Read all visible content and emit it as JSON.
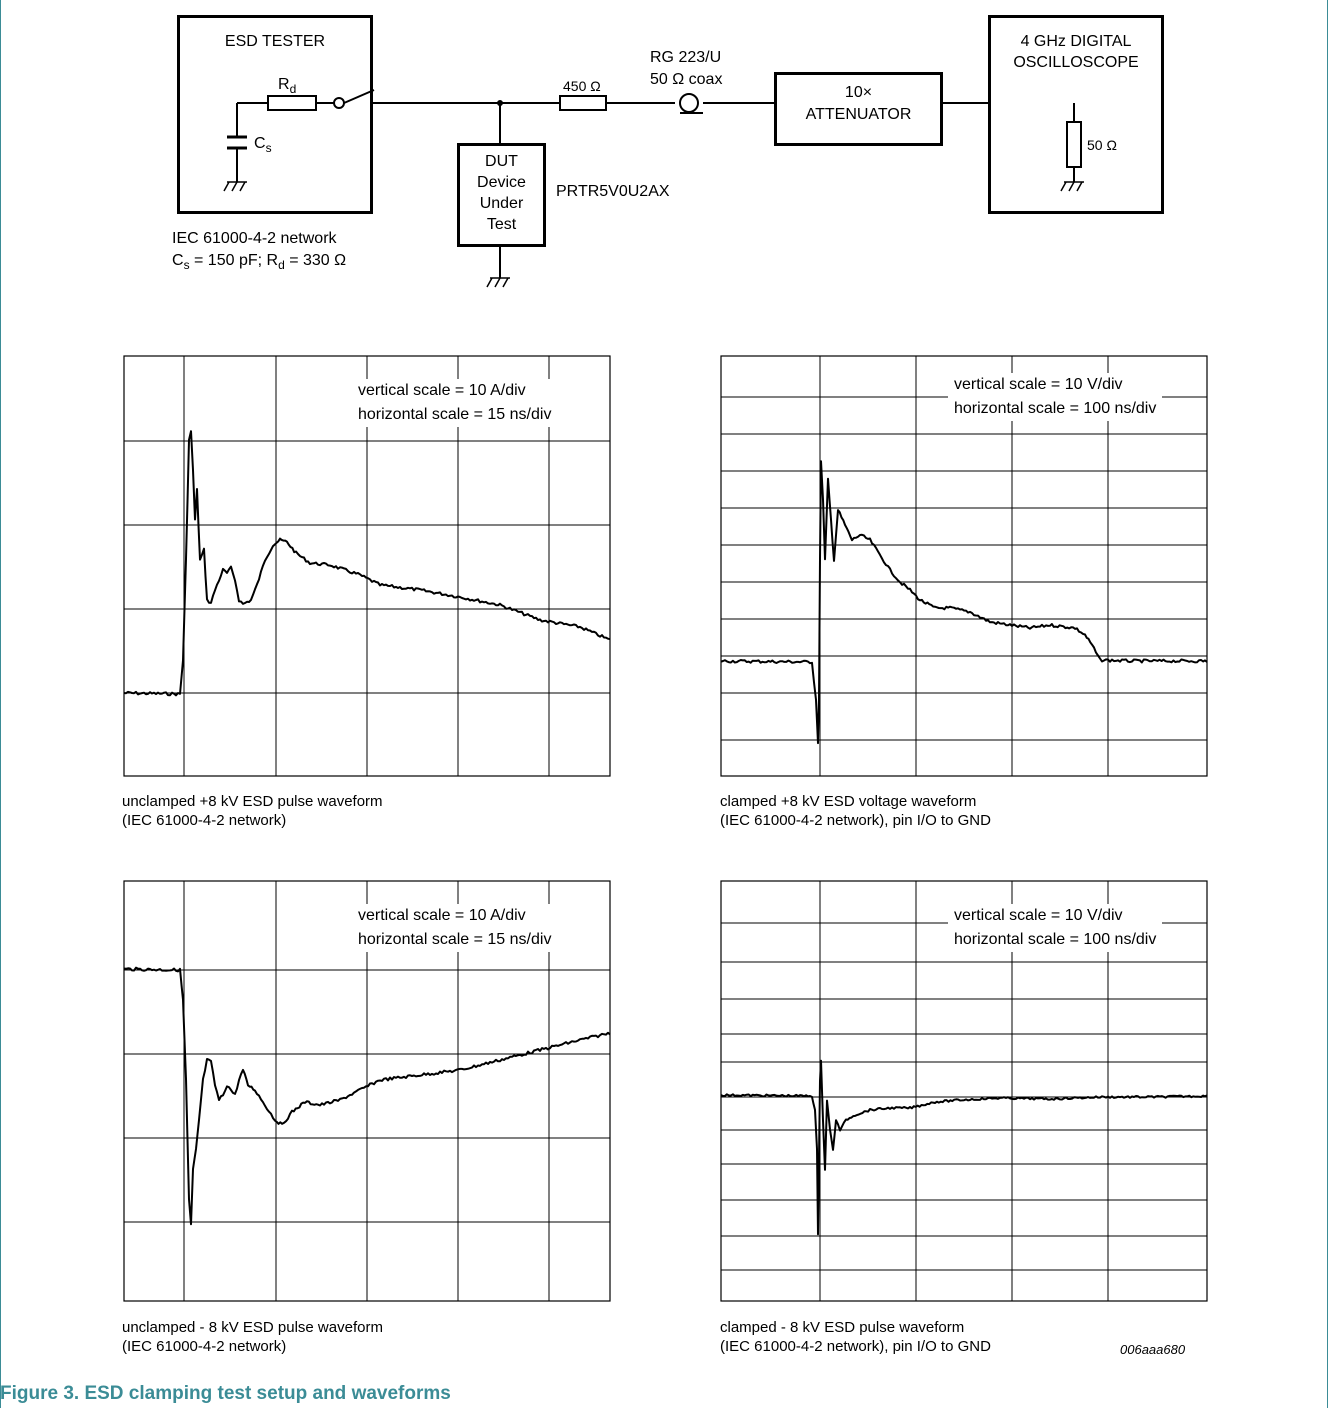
{
  "schematic": {
    "esd_tester_label": "ESD TESTER",
    "rd_main": "R",
    "rd_sub": "d",
    "cs_main": "C",
    "cs_sub": "s",
    "network_line1": "IEC 61000-4-2 network",
    "network_line2_cs": "C",
    "network_line2_cs_sub": "s",
    "network_line2_mid": " = 150 pF; R",
    "network_line2_rd_sub": "d",
    "network_line2_end": " = 330 Ω",
    "resistor_450": "450 Ω",
    "coax_line1": "RG 223/U",
    "coax_line2": "50 Ω coax",
    "dut_lines": [
      "DUT",
      "Device",
      "Under",
      "Test"
    ],
    "part_number": "PRTR5V0U2AX",
    "attenuator_line1": "10×",
    "attenuator_line2": "ATTENUATOR",
    "scope_line1": "4 GHz DIGITAL",
    "scope_line2": "OSCILLOSCOPE",
    "scope_resistor": "50 Ω"
  },
  "plots": [
    {
      "scale_line1": "vertical scale = 10 A/div",
      "scale_line2": "horizontal scale = 15 ns/div",
      "caption_line1": "unclamped +8 kV ESD pulse waveform",
      "caption_line2": "(IEC 61000-4-2 network)"
    },
    {
      "scale_line1": "vertical scale = 10 V/div",
      "scale_line2": "horizontal scale = 100 ns/div",
      "caption_line1": "clamped +8 kV ESD voltage waveform",
      "caption_line2": "(IEC 61000-4-2 network), pin I/O to GND"
    },
    {
      "scale_line1": "vertical scale = 10 A/div",
      "scale_line2": "horizontal scale = 15 ns/div",
      "caption_line1": "unclamped - 8 kV ESD pulse waveform",
      "caption_line2": "(IEC 61000-4-2 network)"
    },
    {
      "scale_line1": "vertical scale = 10 V/div",
      "scale_line2": "horizontal scale = 100 ns/div",
      "caption_line1": "clamped - 8 kV ESD pulse waveform",
      "caption_line2": "(IEC 61000-4-2 network), pin I/O to GND"
    }
  ],
  "figure_id": "006aaa680",
  "figure_title": "Figure 3. ESD clamping test setup and waveforms",
  "colors": {
    "accent": "#3b8c96"
  }
}
